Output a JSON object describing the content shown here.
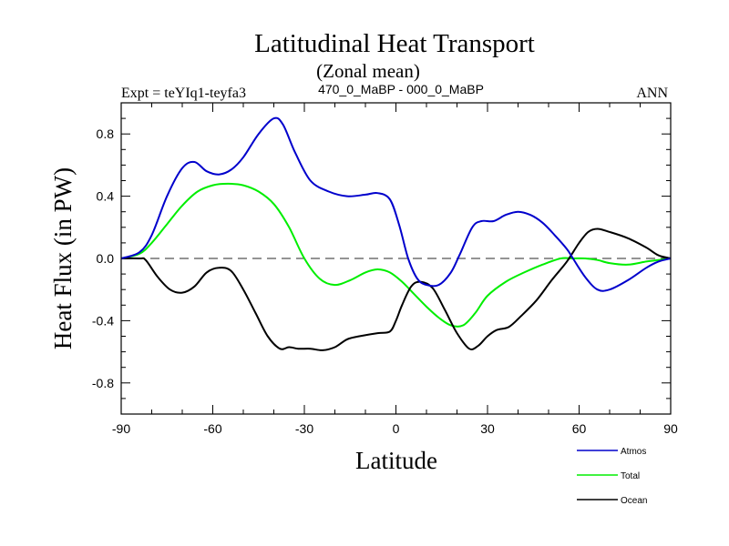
{
  "chart_data": {
    "type": "line",
    "title": "Latitudinal Heat Transport",
    "subtitle": "(Zonal mean)",
    "left_label": "Expt = teYIq1-teyfa3",
    "center_label": "470_0_MaBP - 000_0_MaBP",
    "right_label": "ANN",
    "xlabel": "Latitude",
    "ylabel": "Heat Flux (in PW)",
    "xlim": [
      -90,
      90
    ],
    "ylim": [
      -1.0,
      1.0
    ],
    "xticks": [
      -90,
      -60,
      -30,
      0,
      30,
      60,
      90
    ],
    "xtick_labels": [
      "-90",
      "-60",
      "-30",
      "0",
      "30",
      "60",
      "90"
    ],
    "yticks": [
      -0.8,
      -0.4,
      0.0,
      0.4,
      0.8
    ],
    "ytick_labels": [
      "-0.8",
      "-0.4",
      "0.0",
      "0.4",
      "0.8"
    ],
    "zero_line": "dashed",
    "legend_position": "bottom-right",
    "series": [
      {
        "name": "Atmos",
        "color": "#0000cc",
        "x": [
          -90,
          -84,
          -80,
          -75,
          -70,
          -66,
          -62,
          -58,
          -54,
          -50,
          -45,
          -40,
          -37,
          -33,
          -28,
          -22,
          -16,
          -10,
          -6,
          -2,
          1,
          4,
          7,
          10,
          14,
          18,
          21,
          25,
          28,
          32,
          36,
          40,
          44,
          48,
          52,
          56,
          58,
          62,
          66,
          70,
          76,
          82,
          86,
          90
        ],
        "values": [
          0.0,
          0.04,
          0.15,
          0.4,
          0.58,
          0.62,
          0.56,
          0.54,
          0.57,
          0.65,
          0.8,
          0.9,
          0.86,
          0.68,
          0.5,
          0.43,
          0.4,
          0.41,
          0.42,
          0.38,
          0.22,
          0.0,
          -0.13,
          -0.17,
          -0.17,
          -0.09,
          0.03,
          0.2,
          0.24,
          0.24,
          0.28,
          0.3,
          0.28,
          0.23,
          0.15,
          0.06,
          0.0,
          -0.12,
          -0.2,
          -0.2,
          -0.14,
          -0.06,
          -0.02,
          0.0
        ]
      },
      {
        "name": "Total",
        "color": "#00ee00",
        "x": [
          -90,
          -84,
          -80,
          -75,
          -70,
          -65,
          -60,
          -55,
          -50,
          -45,
          -40,
          -35,
          -30,
          -25,
          -20,
          -15,
          -10,
          -6,
          -2,
          2,
          6,
          10,
          14,
          18,
          22,
          26,
          30,
          36,
          42,
          48,
          54,
          58,
          62,
          66,
          70,
          76,
          82,
          86,
          90
        ],
        "values": [
          0.0,
          0.03,
          0.1,
          0.22,
          0.34,
          0.43,
          0.47,
          0.48,
          0.47,
          0.43,
          0.35,
          0.2,
          0.0,
          -0.13,
          -0.17,
          -0.14,
          -0.09,
          -0.07,
          -0.09,
          -0.15,
          -0.23,
          -0.31,
          -0.38,
          -0.43,
          -0.43,
          -0.35,
          -0.24,
          -0.15,
          -0.09,
          -0.04,
          0.0,
          0.0,
          0.0,
          -0.01,
          -0.03,
          -0.04,
          -0.02,
          -0.01,
          0.0
        ]
      },
      {
        "name": "Ocean",
        "color": "#000000",
        "x": [
          -90,
          -84,
          -82,
          -78,
          -74,
          -70,
          -66,
          -62,
          -58,
          -54,
          -50,
          -46,
          -42,
          -38,
          -35,
          -32,
          -28,
          -24,
          -20,
          -16,
          -12,
          -6,
          -2,
          0,
          2,
          5,
          8,
          12,
          16,
          20,
          24,
          27,
          30,
          33,
          37,
          41,
          46,
          51,
          56,
          60,
          63,
          66,
          70,
          76,
          82,
          86,
          90
        ],
        "values": [
          0.0,
          0.0,
          -0.01,
          -0.12,
          -0.2,
          -0.22,
          -0.18,
          -0.09,
          -0.06,
          -0.08,
          -0.2,
          -0.35,
          -0.5,
          -0.58,
          -0.57,
          -0.58,
          -0.58,
          -0.59,
          -0.57,
          -0.52,
          -0.5,
          -0.48,
          -0.47,
          -0.4,
          -0.3,
          -0.18,
          -0.15,
          -0.19,
          -0.33,
          -0.48,
          -0.58,
          -0.56,
          -0.5,
          -0.46,
          -0.44,
          -0.37,
          -0.27,
          -0.14,
          -0.02,
          0.1,
          0.17,
          0.19,
          0.17,
          0.13,
          0.07,
          0.02,
          0.0
        ]
      }
    ]
  }
}
